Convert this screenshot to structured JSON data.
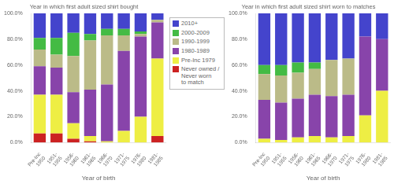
{
  "chart_data": [
    {
      "type": "bar",
      "title": "Year in which first adult sized shirt bought",
      "xlabel": "Year of birth",
      "categories": [
        "Pre-Inc\n1950",
        "1951-\n1955",
        "1956-\n1960",
        "1961-\n1965",
        "1966-\n1970",
        "1971-\n1975",
        "1976-\n1980",
        "1981-\n1985"
      ],
      "series": [
        {
          "name": "Never owned /\nNever worn\nto match",
          "color": "#cc2222",
          "values": [
            7,
            7,
            3,
            1,
            0,
            0,
            0,
            5
          ]
        },
        {
          "name": "Pre-Inc 1979",
          "color": "#eeee44",
          "values": [
            30,
            30,
            12,
            4,
            1,
            9,
            20,
            60
          ]
        },
        {
          "name": "1980-1989",
          "color": "#8844aa",
          "values": [
            22,
            21,
            24,
            36,
            44,
            62,
            62,
            28
          ]
        },
        {
          "name": "1990-1999",
          "color": "#bbbb88",
          "values": [
            13,
            10,
            28,
            38,
            38,
            12,
            2,
            2
          ]
        },
        {
          "name": "2000-2009",
          "color": "#44bb44",
          "values": [
            9,
            13,
            18,
            5,
            5,
            5,
            2,
            0
          ]
        },
        {
          "name": "2010+",
          "color": "#4444cc",
          "values": [
            19,
            19,
            15,
            16,
            12,
            12,
            14,
            5
          ]
        }
      ],
      "ylim": [
        0,
        100
      ],
      "yticks": [
        {
          "value": 0,
          "label": "0.0%"
        },
        {
          "value": 20,
          "label": "20.0%"
        },
        {
          "value": 40,
          "label": "40.0%"
        },
        {
          "value": 60,
          "label": "60.0%"
        },
        {
          "value": 80,
          "label": "80.0%"
        },
        {
          "value": 100,
          "label": "100.0%"
        }
      ],
      "stacked": true,
      "grid": false,
      "legend": "right"
    },
    {
      "type": "bar",
      "title": "Year in which first adult sized shirt worn to matches",
      "xlabel": "Year of birth",
      "categories": [
        "Pre-Inc\n1950",
        "1951-\n1955",
        "1956-\n1960",
        "1961-\n1965",
        "1966-\n1970",
        "1971-\n1975",
        "1976-\n1980",
        "1981-\n1985"
      ],
      "series": [
        {
          "name": "Never owned /\nNever worn\nto match",
          "color": "#cc2222",
          "values": [
            0,
            0,
            0,
            0,
            0,
            0,
            0,
            0
          ]
        },
        {
          "name": "Pre-Inc 1979",
          "color": "#eeee44",
          "values": [
            3,
            2,
            4,
            5,
            4,
            5,
            21,
            40
          ]
        },
        {
          "name": "1980-1989",
          "color": "#8844aa",
          "values": [
            30,
            29,
            30,
            32,
            32,
            32,
            61,
            40
          ]
        },
        {
          "name": "1990-1999",
          "color": "#bbbb88",
          "values": [
            20,
            21,
            20,
            20,
            28,
            28,
            0,
            0
          ]
        },
        {
          "name": "2000-2009",
          "color": "#44bb44",
          "values": [
            7,
            8,
            8,
            5,
            0,
            0,
            0,
            0
          ]
        },
        {
          "name": "2010+",
          "color": "#4444cc",
          "values": [
            40,
            40,
            38,
            38,
            36,
            35,
            18,
            20
          ]
        }
      ],
      "ylim": [
        0,
        100
      ],
      "yticks": [
        {
          "value": 0,
          "label": "0.0%"
        },
        {
          "value": 20,
          "label": "20.0%"
        },
        {
          "value": 40,
          "label": "40.0%"
        },
        {
          "value": 60,
          "label": "60.0%"
        },
        {
          "value": 80,
          "label": "80.0%"
        },
        {
          "value": 100,
          "label": "100.0%"
        }
      ],
      "stacked": true,
      "grid": false
    }
  ]
}
